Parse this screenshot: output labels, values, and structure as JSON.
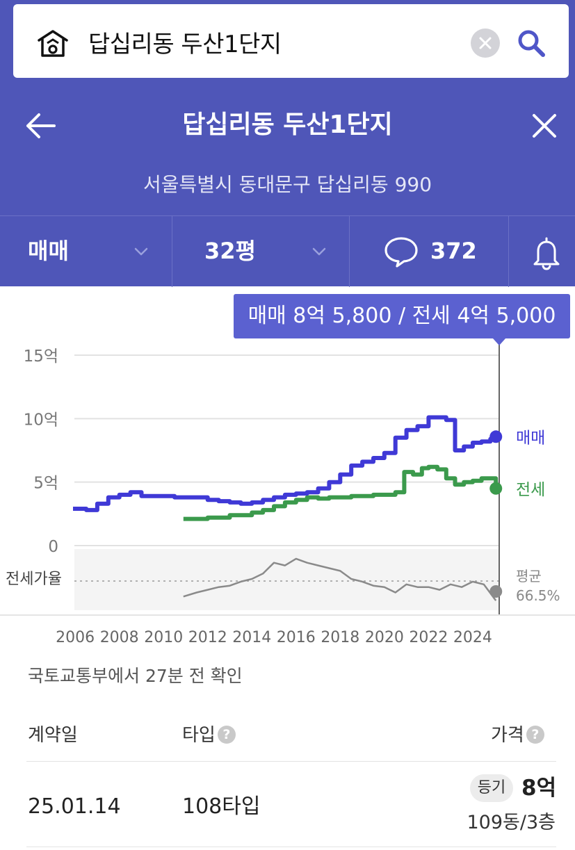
{
  "search": {
    "query": "답십리동 두산1단지"
  },
  "header": {
    "title": "답십리동 두산1단지",
    "address": "서울특별시 동대문구 답십리동 990"
  },
  "tabs": {
    "deal_type": "매매",
    "size": "32평",
    "comment_count": "372"
  },
  "tooltip": {
    "text": "매매 8억 5,800 / 전세 4억 5,000"
  },
  "colors": {
    "header": "#4f56b8",
    "sale": "#3f39d6",
    "jeonse": "#3b9a4c",
    "ratio": "#8a8a8a",
    "tooltip": "#5b61d0"
  },
  "chart_data": {
    "type": "line",
    "y_tick_labels": [
      "15억",
      "10억",
      "5억",
      "0"
    ],
    "ylim": [
      0,
      15
    ],
    "x_tick_labels": [
      "2006",
      "2008",
      "2010",
      "2012",
      "2014",
      "2016",
      "2018",
      "2020",
      "2022",
      "2024"
    ],
    "xlim": [
      2005.9,
      2025.2
    ],
    "series": [
      {
        "name": "매매",
        "color": "#3f39d6",
        "x": [
          2005.9,
          2006.5,
          2007.0,
          2007.5,
          2008.0,
          2008.5,
          2009.0,
          2009.5,
          2010.0,
          2010.5,
          2011.0,
          2011.5,
          2012.0,
          2012.5,
          2013.0,
          2013.5,
          2014.0,
          2014.5,
          2015.0,
          2015.5,
          2016.0,
          2016.5,
          2017.0,
          2017.5,
          2018.0,
          2018.5,
          2019.0,
          2019.5,
          2020.0,
          2020.5,
          2021.0,
          2021.5,
          2022.0,
          2022.5,
          2022.8,
          2023.2,
          2023.6,
          2024.0,
          2024.4,
          2024.8,
          2025.05
        ],
        "y": [
          2.9,
          2.8,
          3.3,
          3.8,
          4.0,
          4.2,
          3.9,
          3.9,
          3.9,
          3.8,
          3.8,
          3.8,
          3.6,
          3.5,
          3.4,
          3.3,
          3.4,
          3.6,
          3.8,
          4.0,
          4.1,
          4.2,
          4.5,
          5.0,
          5.6,
          6.3,
          6.6,
          6.9,
          7.3,
          8.5,
          9.1,
          9.4,
          10.1,
          10.1,
          9.9,
          7.5,
          7.8,
          8.1,
          8.2,
          8.4,
          8.58
        ]
      },
      {
        "name": "전세",
        "color": "#3b9a4c",
        "x": [
          2010.9,
          2011.5,
          2012.0,
          2012.5,
          2013.0,
          2013.5,
          2014.0,
          2014.5,
          2015.0,
          2015.5,
          2016.0,
          2016.5,
          2017.0,
          2017.5,
          2018.0,
          2018.5,
          2019.0,
          2019.5,
          2020.0,
          2020.5,
          2020.9,
          2021.3,
          2021.7,
          2022.0,
          2022.4,
          2022.8,
          2023.2,
          2023.6,
          2024.0,
          2024.4,
          2024.8,
          2025.05
        ],
        "y": [
          2.1,
          2.1,
          2.2,
          2.2,
          2.4,
          2.4,
          2.6,
          2.8,
          3.1,
          3.4,
          3.6,
          3.8,
          3.7,
          3.8,
          3.8,
          3.9,
          3.9,
          4.0,
          4.0,
          4.2,
          5.8,
          5.6,
          6.1,
          6.2,
          6.0,
          5.3,
          4.8,
          5.0,
          5.1,
          5.3,
          5.3,
          4.5
        ]
      }
    ],
    "ratio_series": {
      "name": "전세가율",
      "color": "#8a8a8a",
      "x": [
        2010.9,
        2011.5,
        2012.0,
        2012.5,
        2013.0,
        2013.5,
        2014.0,
        2014.5,
        2015.0,
        2015.5,
        2016.0,
        2016.5,
        2017.0,
        2017.5,
        2018.0,
        2018.5,
        2019.0,
        2019.5,
        2020.0,
        2020.5,
        2021.0,
        2021.5,
        2022.0,
        2022.5,
        2023.0,
        2023.5,
        2024.0,
        2024.5,
        2025.05
      ],
      "y": [
        55,
        58,
        60,
        62,
        63,
        66,
        68,
        72,
        80,
        78,
        83,
        80,
        78,
        76,
        74,
        68,
        66,
        63,
        62,
        58,
        64,
        62,
        62,
        60,
        64,
        62,
        66,
        64,
        52
      ]
    },
    "ratio_label": "전세가율",
    "average_label": "평균",
    "average_value": "66.5%",
    "end_labels": {
      "sale": "매매",
      "jeonse": "전세"
    }
  },
  "update": {
    "text": "국토교통부에서 27분 전 확인"
  },
  "table": {
    "headers": {
      "date": "계약일",
      "type": "타입",
      "price": "가격"
    },
    "rows": [
      {
        "date": "25.01.14",
        "type": "108타입",
        "badge": "등기",
        "price": "8억",
        "unit": "109동/3층"
      }
    ]
  }
}
